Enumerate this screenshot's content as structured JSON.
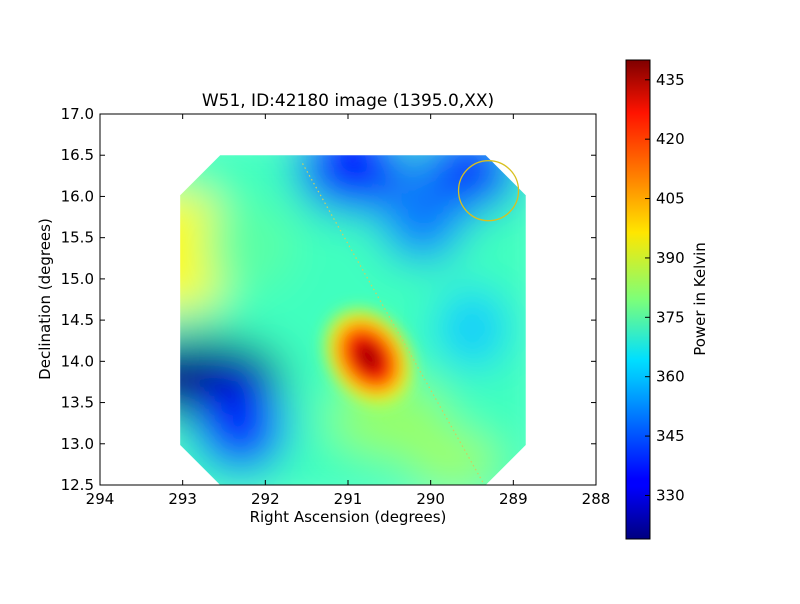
{
  "chart_data": {
    "type": "heatmap",
    "title": "W51, ID:42180 image (1395.0,XX)",
    "xlabel": "Right Ascension (degrees)",
    "ylabel": "Declination (degrees)",
    "xlim": [
      294,
      288
    ],
    "ylim": [
      12.5,
      17.0
    ],
    "x_ticks": [
      "294",
      "293",
      "292",
      "291",
      "290",
      "289",
      "288"
    ],
    "y_ticks": [
      "12.5",
      "13.0",
      "13.5",
      "14.0",
      "14.5",
      "15.0",
      "15.5",
      "16.0",
      "16.5",
      "17.0"
    ],
    "colorbar": {
      "label": "Power in Kelvin",
      "range": [
        319,
        440
      ],
      "ticks": [
        "330",
        "345",
        "360",
        "375",
        "390",
        "405",
        "420",
        "435"
      ],
      "colormap": "jet"
    },
    "map_extent": {
      "ra": [
        293.03,
        288.85
      ],
      "dec": [
        12.5,
        16.5
      ]
    },
    "features": [
      {
        "kind": "peak",
        "ra": 290.75,
        "dec": 14.05,
        "value": 438
      },
      {
        "kind": "minimum",
        "ra": 292.8,
        "dec": 13.8,
        "value": 320
      },
      {
        "kind": "minimum",
        "ra": 290.9,
        "dec": 16.4,
        "value": 336
      },
      {
        "kind": "minimum",
        "ra": 289.5,
        "dec": 16.3,
        "value": 338
      },
      {
        "kind": "warm-region",
        "ra": 293.0,
        "dec": 15.2,
        "value": 395
      }
    ],
    "overlays": [
      {
        "kind": "beam-circle",
        "ra": 289.3,
        "dec": 16.07,
        "color": "#d8c020"
      },
      {
        "kind": "galactic-plane-line",
        "from": {
          "ra": 291.55,
          "dec": 16.4
        },
        "to": {
          "ra": 289.35,
          "dec": 12.5
        },
        "style": "dotted",
        "color": "#cfcf60"
      }
    ]
  }
}
